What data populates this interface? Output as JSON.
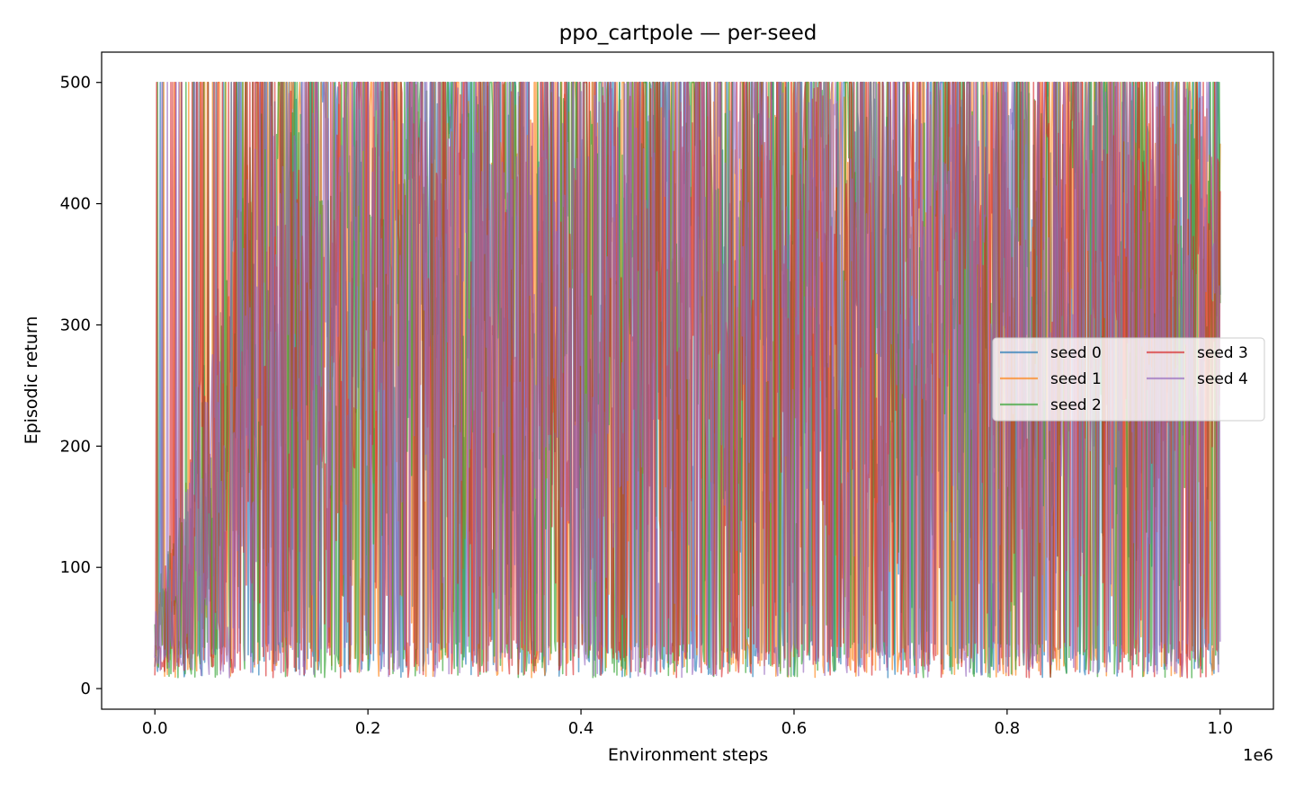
{
  "chart_data": {
    "type": "line",
    "title": "ppo_cartpole — per-seed",
    "xlabel": "Environment steps",
    "ylabel": "Episodic return",
    "x_offset_label": "1e6",
    "xlim": [
      -50000,
      1050000
    ],
    "ylim": [
      -17,
      525
    ],
    "x_ticks": [
      0,
      200000,
      400000,
      600000,
      800000,
      1000000
    ],
    "x_tick_labels": [
      "0.0",
      "0.2",
      "0.4",
      "0.6",
      "0.8",
      "1.0"
    ],
    "y_ticks": [
      0,
      100,
      200,
      300,
      400,
      500
    ],
    "y_tick_labels": [
      "0",
      "100",
      "200",
      "300",
      "400",
      "500"
    ],
    "grid": false,
    "legend": {
      "position": "center-right",
      "columns": 2
    },
    "x_range": [
      0,
      1000000
    ],
    "max_return": 500,
    "min_return": 9,
    "series": [
      {
        "name": "seed 0",
        "color": "#1f77b4"
      },
      {
        "name": "seed 1",
        "color": "#ff7f0e"
      },
      {
        "name": "seed 2",
        "color": "#2ca02c"
      },
      {
        "name": "seed 3",
        "color": "#d62728"
      },
      {
        "name": "seed 4",
        "color": "#9467bd"
      }
    ]
  }
}
